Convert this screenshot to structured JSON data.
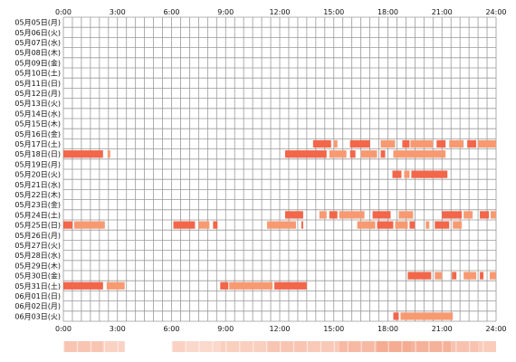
{
  "chart_data": {
    "type": "heatmap",
    "x_ticks": [
      "0:00",
      "3:00",
      "6:00",
      "9:00",
      "12:00",
      "15:00",
      "18:00",
      "21:00",
      "24:00"
    ],
    "xlim": [
      0,
      24
    ],
    "grid": true,
    "rows": [
      {
        "label": "05月05日(月)",
        "segments": []
      },
      {
        "label": "05月06日(火)",
        "segments": []
      },
      {
        "label": "05月07日(水)",
        "segments": []
      },
      {
        "label": "05月08日(木)",
        "segments": []
      },
      {
        "label": "05月09日(金)",
        "segments": []
      },
      {
        "label": "05月10日(土)",
        "segments": []
      },
      {
        "label": "05月11日(日)",
        "segments": []
      },
      {
        "label": "05月12日(月)",
        "segments": []
      },
      {
        "label": "05月13日(火)",
        "segments": []
      },
      {
        "label": "05月14日(水)",
        "segments": []
      },
      {
        "label": "05月15日(木)",
        "segments": []
      },
      {
        "label": "05月16日(金)",
        "segments": []
      },
      {
        "label": "05月17日(土)",
        "segments": [
          [
            13.85,
            14.85
          ],
          [
            15.0,
            15.2
          ],
          [
            15.9,
            17.0
          ],
          [
            17.6,
            18.4
          ],
          [
            18.8,
            19.2
          ],
          [
            19.25,
            20.5
          ],
          [
            20.7,
            21.2
          ],
          [
            21.4,
            22.2
          ],
          [
            22.4,
            22.9
          ],
          [
            23.0,
            24.0
          ]
        ]
      },
      {
        "label": "05月18日(日)",
        "segments": [
          [
            0.0,
            2.2
          ],
          [
            2.45,
            2.6
          ],
          [
            12.3,
            14.6
          ],
          [
            14.75,
            15.7
          ],
          [
            15.9,
            16.2
          ],
          [
            16.5,
            17.4
          ],
          [
            17.6,
            17.85
          ],
          [
            18.3,
            21.2
          ]
        ]
      },
      {
        "label": "05月19日(月)",
        "segments": []
      },
      {
        "label": "05月20日(火)",
        "segments": [
          [
            18.25,
            18.75
          ],
          [
            18.9,
            19.2
          ],
          [
            19.3,
            21.3
          ]
        ]
      },
      {
        "label": "05月21日(水)",
        "segments": []
      },
      {
        "label": "05月22日(木)",
        "segments": []
      },
      {
        "label": "05月23日(金)",
        "segments": []
      },
      {
        "label": "05月24日(土)",
        "segments": [
          [
            12.3,
            13.3
          ],
          [
            14.2,
            14.6
          ],
          [
            14.75,
            15.2
          ],
          [
            15.3,
            16.7
          ],
          [
            17.15,
            18.15
          ],
          [
            18.6,
            19.4
          ],
          [
            21.0,
            22.1
          ],
          [
            22.2,
            22.7
          ],
          [
            23.1,
            23.6
          ],
          [
            23.7,
            24.0
          ]
        ]
      },
      {
        "label": "05月25日(日)",
        "segments": [
          [
            0.0,
            0.5
          ],
          [
            0.6,
            2.3
          ],
          [
            6.1,
            7.3
          ],
          [
            7.5,
            8.1
          ],
          [
            8.3,
            8.55
          ],
          [
            11.3,
            12.9
          ],
          [
            13.2,
            13.3
          ],
          [
            16.3,
            17.3
          ],
          [
            17.4,
            18.3
          ],
          [
            18.4,
            19.1
          ],
          [
            19.2,
            19.5
          ],
          [
            20.1,
            20.3
          ],
          [
            20.6,
            21.4
          ],
          [
            21.6,
            22.1
          ]
        ]
      },
      {
        "label": "05月26日(月)",
        "segments": []
      },
      {
        "label": "05月27日(火)",
        "segments": []
      },
      {
        "label": "05月28日(水)",
        "segments": []
      },
      {
        "label": "05月29日(木)",
        "segments": []
      },
      {
        "label": "05月30日(金)",
        "segments": [
          [
            19.1,
            20.4
          ],
          [
            20.6,
            21.0
          ],
          [
            21.55,
            21.8
          ],
          [
            22.2,
            22.9
          ],
          [
            23.1,
            23.3
          ],
          [
            23.65,
            24.0
          ]
        ]
      },
      {
        "label": "05月31日(土)",
        "segments": [
          [
            0.0,
            2.2
          ],
          [
            2.4,
            3.4
          ],
          [
            8.7,
            9.15
          ],
          [
            9.2,
            11.6
          ],
          [
            11.7,
            13.5
          ]
        ]
      },
      {
        "label": "06月01日(日)",
        "segments": []
      },
      {
        "label": "06月02日(月)",
        "segments": []
      },
      {
        "label": "06月03日(火)",
        "segments": [
          [
            18.3,
            18.6
          ],
          [
            18.7,
            21.6
          ]
        ]
      }
    ],
    "colors": {
      "bar": "#f2664a",
      "bar_light": "#f79a72",
      "grid": "#9a9a9a",
      "background": "#ffffff",
      "density_low": "#fde8e0",
      "density_high": "#f3a98e"
    },
    "density_strip": {
      "segments": [
        [
          0.0,
          2.2,
          0.55
        ],
        [
          2.2,
          3.4,
          0.35
        ],
        [
          3.4,
          6.0,
          0.0
        ],
        [
          6.0,
          6.8,
          0.35
        ],
        [
          6.8,
          8.7,
          0.25
        ],
        [
          8.7,
          11.3,
          0.4
        ],
        [
          11.3,
          13.5,
          0.55
        ],
        [
          13.5,
          15.3,
          0.5
        ],
        [
          15.3,
          17.4,
          0.75
        ],
        [
          17.4,
          19.3,
          0.95
        ],
        [
          19.3,
          21.5,
          0.85
        ],
        [
          21.5,
          23.0,
          0.6
        ],
        [
          23.0,
          24.0,
          0.45
        ]
      ]
    }
  }
}
